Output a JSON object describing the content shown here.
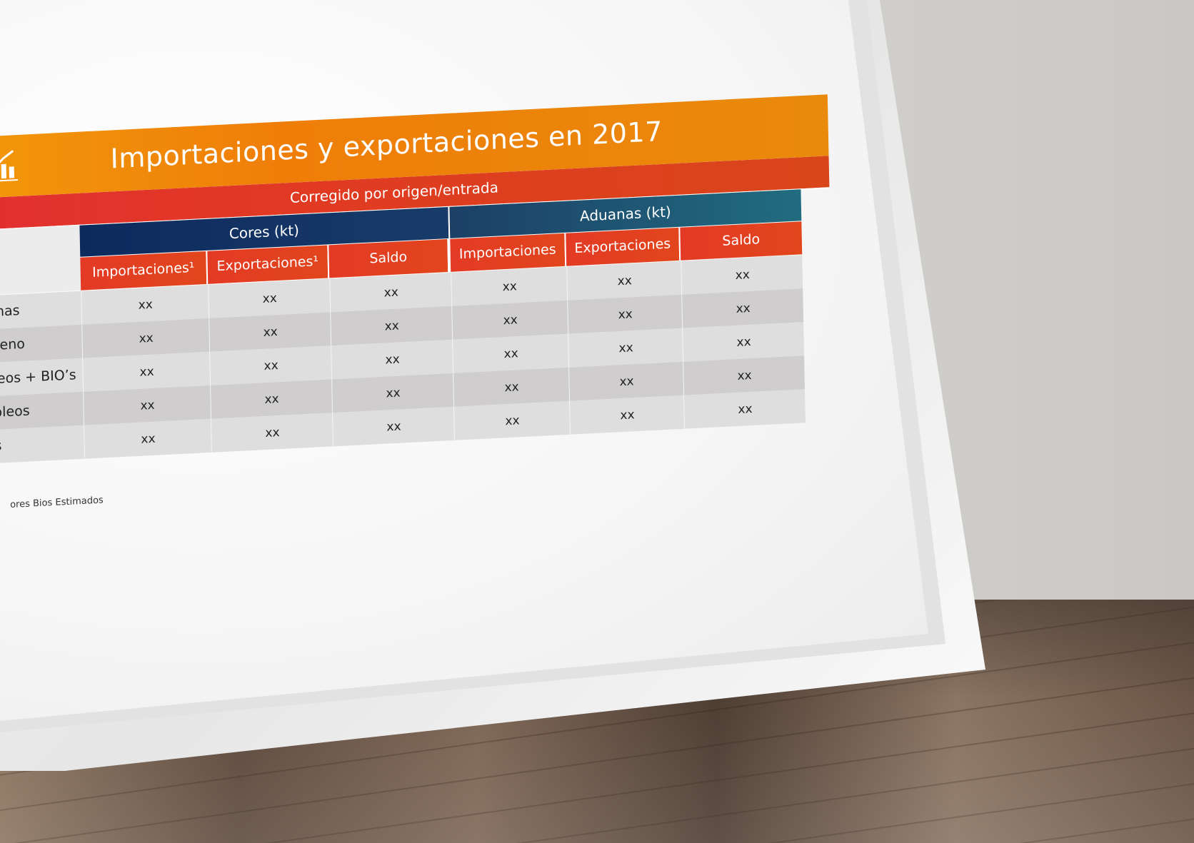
{
  "poster": {
    "title": "Importaciones y exportaciones en 2017",
    "subtitle": "Corregido por origen/entrada",
    "groups": {
      "cores": "Cores (kt)",
      "aduanas": "Aduanas (kt)"
    },
    "columns": [
      "Importaciones¹",
      "Exportaciones¹",
      "Saldo",
      "Importaciones",
      "Exportaciones",
      "Saldo"
    ],
    "rows": [
      {
        "label": "inas",
        "values": [
          "xx",
          "xx",
          "xx",
          "xx",
          "xx",
          "xx"
        ]
      },
      {
        "label": "seno",
        "values": [
          "xx",
          "xx",
          "xx",
          "xx",
          "xx",
          "xx"
        ]
      },
      {
        "label": "leos + BIO’s",
        "values": [
          "xx",
          "xx",
          "xx",
          "xx",
          "xx",
          "xx"
        ]
      },
      {
        "label": "óleos",
        "values": [
          "xx",
          "xx",
          "xx",
          "xx",
          "xx",
          "xx"
        ]
      },
      {
        "label": "s",
        "values": [
          "xx",
          "xx",
          "xx",
          "xx",
          "xx",
          "xx"
        ]
      }
    ],
    "footnote": "ores Bios Estimados",
    "icon": "chart-icon",
    "colors": {
      "title_bar": "#f2960a",
      "subtitle_bar": "#e03b22",
      "cores_header": "#0d2a5d",
      "aduanas_header": "#216c80",
      "column_header": "#e33a25",
      "row_light": "#dedede",
      "row_dark": "#cfcdcd"
    }
  }
}
